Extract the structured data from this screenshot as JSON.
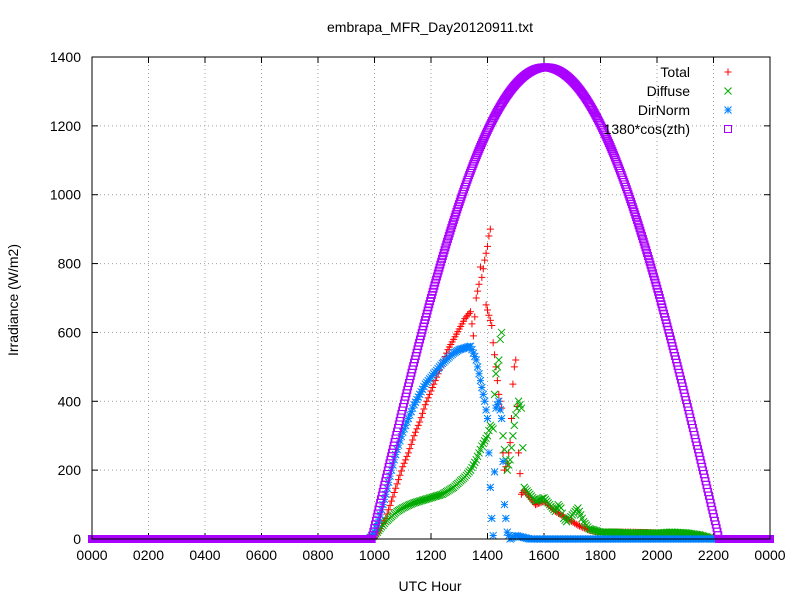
{
  "chart_data": {
    "type": "scatter",
    "title": "embrapa_MFR_Day20120911.txt",
    "xlabel": "UTC Hour",
    "ylabel": "Irradiance (W/m2)",
    "xlim": [
      0,
      24
    ],
    "ylim": [
      0,
      1400
    ],
    "x_ticks": [
      0,
      2,
      4,
      6,
      8,
      10,
      12,
      14,
      16,
      18,
      20,
      22,
      24
    ],
    "x_tick_labels": [
      "0000",
      "0200",
      "0400",
      "0600",
      "0800",
      "1000",
      "1200",
      "1400",
      "1600",
      "1800",
      "2000",
      "2200",
      "0000"
    ],
    "y_ticks": [
      0,
      200,
      400,
      600,
      800,
      1000,
      1200,
      1400
    ],
    "y_tick_labels": [
      "0",
      "200",
      "400",
      "600",
      "800",
      "1000",
      "1200",
      "1400"
    ],
    "grid": true,
    "legend_position": "top-right",
    "series": [
      {
        "name": "Total",
        "color": "#ff0000",
        "marker": "plus",
        "points": [
          [
            0,
            0
          ],
          [
            2,
            0
          ],
          [
            4,
            0
          ],
          [
            6,
            0
          ],
          [
            8,
            0
          ],
          [
            9.8,
            0
          ],
          [
            10.0,
            5
          ],
          [
            10.2,
            30
          ],
          [
            10.4,
            60
          ],
          [
            10.6,
            110
          ],
          [
            10.8,
            160
          ],
          [
            11.0,
            210
          ],
          [
            11.2,
            250
          ],
          [
            11.4,
            300
          ],
          [
            11.6,
            340
          ],
          [
            11.8,
            390
          ],
          [
            12.0,
            430
          ],
          [
            12.2,
            470
          ],
          [
            12.4,
            510
          ],
          [
            12.6,
            550
          ],
          [
            12.8,
            580
          ],
          [
            13.0,
            610
          ],
          [
            13.2,
            640
          ],
          [
            13.4,
            660
          ],
          [
            13.5,
            590
          ],
          [
            13.6,
            700
          ],
          [
            13.7,
            740
          ],
          [
            13.75,
            790
          ],
          [
            13.8,
            760
          ],
          [
            13.9,
            810
          ],
          [
            14.0,
            850
          ],
          [
            14.05,
            880
          ],
          [
            14.1,
            900
          ],
          [
            13.95,
            680
          ],
          [
            14.15,
            620
          ],
          [
            14.2,
            570
          ],
          [
            14.3,
            500
          ],
          [
            14.4,
            420
          ],
          [
            14.5,
            380
          ],
          [
            14.55,
            250
          ],
          [
            14.6,
            200
          ],
          [
            14.7,
            220
          ],
          [
            14.8,
            280
          ],
          [
            14.85,
            350
          ],
          [
            14.9,
            450
          ],
          [
            14.95,
            500
          ],
          [
            15.0,
            520
          ],
          [
            15.1,
            250
          ],
          [
            15.2,
            130
          ],
          [
            15.3,
            140
          ],
          [
            15.5,
            120
          ],
          [
            15.7,
            100
          ],
          [
            16.0,
            110
          ],
          [
            16.4,
            80
          ],
          [
            16.8,
            60
          ],
          [
            17.2,
            40
          ],
          [
            17.6,
            25
          ],
          [
            18.0,
            20
          ],
          [
            19.0,
            20
          ],
          [
            20.0,
            18
          ],
          [
            21.0,
            15
          ],
          [
            21.5,
            12
          ],
          [
            21.8,
            5
          ],
          [
            22.0,
            0
          ],
          [
            23.0,
            0
          ],
          [
            24.0,
            0
          ]
        ]
      },
      {
        "name": "Diffuse",
        "color": "#00aa00",
        "marker": "cross",
        "points": [
          [
            0,
            0
          ],
          [
            2,
            0
          ],
          [
            4,
            0
          ],
          [
            6,
            0
          ],
          [
            8,
            0
          ],
          [
            9.8,
            0
          ],
          [
            10.0,
            10
          ],
          [
            10.2,
            30
          ],
          [
            10.4,
            50
          ],
          [
            10.6,
            65
          ],
          [
            10.8,
            80
          ],
          [
            11.0,
            90
          ],
          [
            11.2,
            98
          ],
          [
            11.4,
            105
          ],
          [
            11.6,
            110
          ],
          [
            11.8,
            115
          ],
          [
            12.0,
            120
          ],
          [
            12.2,
            125
          ],
          [
            12.4,
            130
          ],
          [
            12.6,
            140
          ],
          [
            12.8,
            150
          ],
          [
            13.0,
            165
          ],
          [
            13.2,
            180
          ],
          [
            13.4,
            200
          ],
          [
            13.6,
            230
          ],
          [
            13.8,
            270
          ],
          [
            14.0,
            300
          ],
          [
            14.1,
            330
          ],
          [
            14.2,
            320
          ],
          [
            14.25,
            420
          ],
          [
            14.3,
            480
          ],
          [
            14.4,
            520
          ],
          [
            14.45,
            580
          ],
          [
            14.5,
            600
          ],
          [
            14.55,
            300
          ],
          [
            14.6,
            260
          ],
          [
            14.7,
            200
          ],
          [
            14.8,
            230
          ],
          [
            14.9,
            300
          ],
          [
            15.0,
            360
          ],
          [
            15.1,
            400
          ],
          [
            15.2,
            380
          ],
          [
            15.3,
            150
          ],
          [
            15.5,
            130
          ],
          [
            15.7,
            110
          ],
          [
            16.0,
            120
          ],
          [
            16.2,
            100
          ],
          [
            16.4,
            80
          ],
          [
            16.5,
            100
          ],
          [
            16.6,
            90
          ],
          [
            16.7,
            60
          ],
          [
            16.8,
            50
          ],
          [
            17.0,
            70
          ],
          [
            17.2,
            90
          ],
          [
            17.4,
            50
          ],
          [
            17.6,
            30
          ],
          [
            17.8,
            25
          ],
          [
            18.0,
            20
          ],
          [
            18.5,
            20
          ],
          [
            19.0,
            18
          ],
          [
            19.5,
            18
          ],
          [
            20.0,
            17
          ],
          [
            20.5,
            20
          ],
          [
            21.0,
            18
          ],
          [
            21.5,
            12
          ],
          [
            21.8,
            5
          ],
          [
            22.0,
            0
          ],
          [
            23.0,
            0
          ],
          [
            24.0,
            0
          ]
        ]
      },
      {
        "name": "DirNorm",
        "color": "#0080ff",
        "marker": "star",
        "points": [
          [
            0,
            0
          ],
          [
            2,
            0
          ],
          [
            4,
            0
          ],
          [
            6,
            0
          ],
          [
            8,
            0
          ],
          [
            9.8,
            0
          ],
          [
            10.0,
            20
          ],
          [
            10.2,
            70
          ],
          [
            10.4,
            130
          ],
          [
            10.6,
            200
          ],
          [
            10.8,
            260
          ],
          [
            11.0,
            310
          ],
          [
            11.2,
            350
          ],
          [
            11.4,
            390
          ],
          [
            11.6,
            420
          ],
          [
            11.8,
            450
          ],
          [
            12.0,
            470
          ],
          [
            12.2,
            490
          ],
          [
            12.4,
            510
          ],
          [
            12.6,
            525
          ],
          [
            12.8,
            540
          ],
          [
            13.0,
            550
          ],
          [
            13.2,
            555
          ],
          [
            13.4,
            560
          ],
          [
            13.5,
            540
          ],
          [
            13.6,
            520
          ],
          [
            13.7,
            480
          ],
          [
            13.8,
            440
          ],
          [
            13.9,
            400
          ],
          [
            14.0,
            350
          ],
          [
            14.05,
            250
          ],
          [
            14.1,
            150
          ],
          [
            14.15,
            60
          ],
          [
            14.2,
            10
          ],
          [
            14.3,
            380
          ],
          [
            14.4,
            400
          ],
          [
            14.5,
            350
          ],
          [
            14.6,
            100
          ],
          [
            14.7,
            20
          ],
          [
            14.8,
            0
          ],
          [
            15.0,
            10
          ],
          [
            15.5,
            0
          ],
          [
            16.0,
            0
          ],
          [
            17.0,
            0
          ],
          [
            18.0,
            0
          ],
          [
            19.0,
            0
          ],
          [
            20.0,
            0
          ],
          [
            21.0,
            0
          ],
          [
            22.0,
            0
          ],
          [
            23.0,
            0
          ],
          [
            24.0,
            0
          ]
        ]
      },
      {
        "name": "1380*cos(zth)",
        "color": "#aa00ff",
        "marker": "square",
        "curve": {
          "sunrise": 9.9,
          "sunset": 22.2,
          "peak_hour": 16.05,
          "peak_value": 1370
        }
      }
    ]
  }
}
